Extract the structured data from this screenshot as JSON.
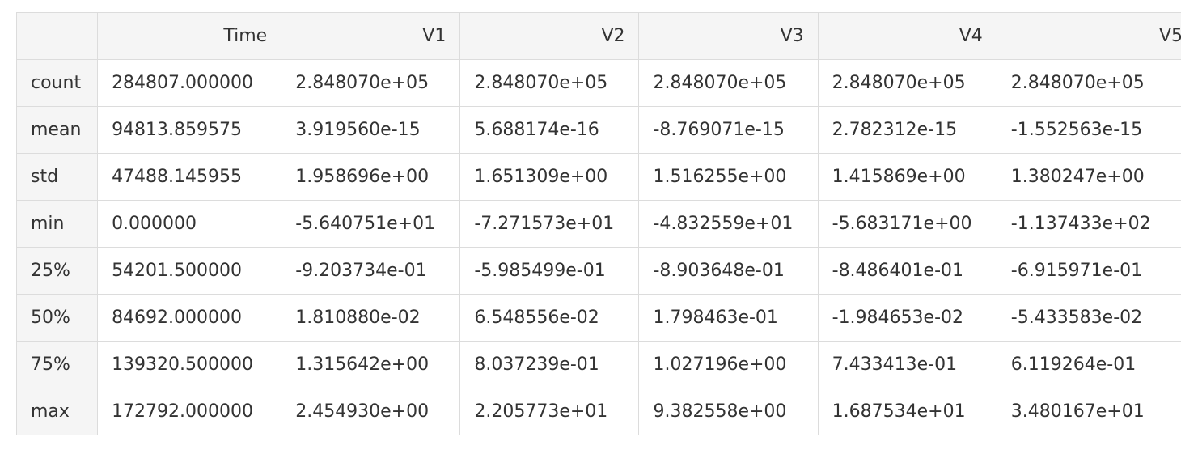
{
  "table": {
    "columns": [
      "",
      "Time",
      "V1",
      "V2",
      "V3",
      "V4",
      "V5"
    ],
    "rows": [
      {
        "label": "count",
        "values": [
          "284807.000000",
          "2.848070e+05",
          "2.848070e+05",
          "2.848070e+05",
          "2.848070e+05",
          "2.848070e+05"
        ]
      },
      {
        "label": "mean",
        "values": [
          "94813.859575",
          "3.919560e-15",
          "5.688174e-16",
          "-8.769071e-15",
          "2.782312e-15",
          "-1.552563e-15"
        ]
      },
      {
        "label": "std",
        "values": [
          "47488.145955",
          "1.958696e+00",
          "1.651309e+00",
          "1.516255e+00",
          "1.415869e+00",
          "1.380247e+00"
        ]
      },
      {
        "label": "min",
        "values": [
          "0.000000",
          "-5.640751e+01",
          "-7.271573e+01",
          "-4.832559e+01",
          "-5.683171e+00",
          "-1.137433e+02"
        ]
      },
      {
        "label": "25%",
        "values": [
          "54201.500000",
          "-9.203734e-01",
          "-5.985499e-01",
          "-8.903648e-01",
          "-8.486401e-01",
          "-6.915971e-01"
        ]
      },
      {
        "label": "50%",
        "values": [
          "84692.000000",
          "1.810880e-02",
          "6.548556e-02",
          "1.798463e-01",
          "-1.984653e-02",
          "-5.433583e-02"
        ]
      },
      {
        "label": "75%",
        "values": [
          "139320.500000",
          "1.315642e+00",
          "8.037239e-01",
          "1.027196e+00",
          "7.433413e-01",
          "6.119264e-01"
        ]
      },
      {
        "label": "max",
        "values": [
          "172792.000000",
          "2.454930e+00",
          "2.205773e+01",
          "9.382558e+00",
          "1.687534e+01",
          "3.480167e+01"
        ]
      }
    ]
  }
}
